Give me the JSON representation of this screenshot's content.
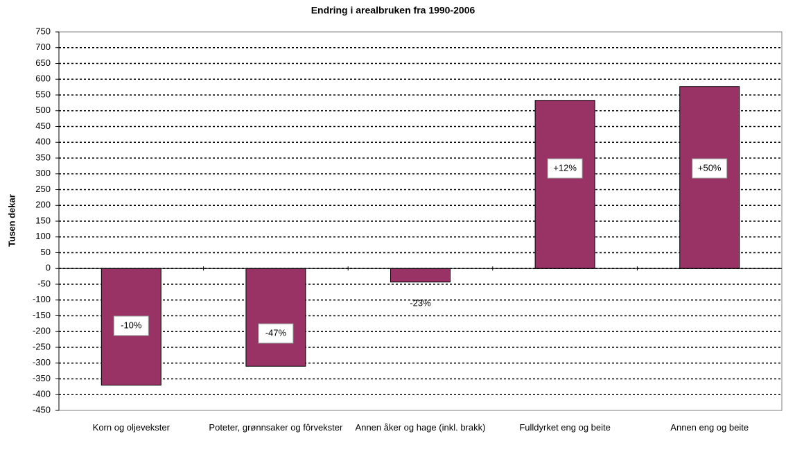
{
  "chart_data": {
    "type": "bar",
    "title": "Endring i arealbruken fra 1990-2006",
    "y_label": "Tusen dekar",
    "categories": [
      "Korn og oljevekster",
      "Poteter, grønnsaker og fôrvekster",
      "Annen åker og hage (inkl. brakk)",
      "Fulldyrket eng og beite",
      "Annen eng og beite"
    ],
    "values": [
      -370,
      -310,
      -43,
      533,
      577
    ],
    "annotations": [
      "-10%",
      "-47%",
      "-23%",
      "+12%",
      "+50%"
    ],
    "color": "#993366",
    "ylim": [
      -450,
      750
    ],
    "yticks": [
      -450,
      -400,
      -350,
      -300,
      -250,
      -200,
      -150,
      -100,
      -50,
      0,
      50,
      100,
      150,
      200,
      250,
      300,
      350,
      400,
      450,
      500,
      550,
      600,
      650,
      700,
      750
    ],
    "grid": true
  }
}
